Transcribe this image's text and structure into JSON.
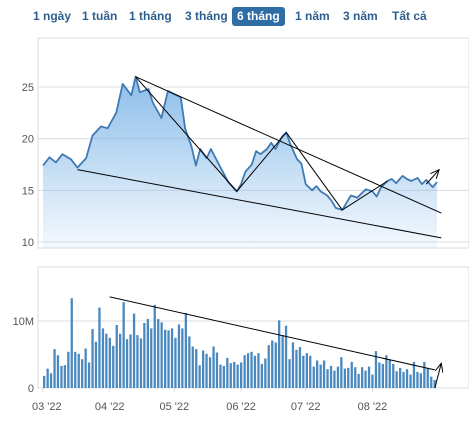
{
  "tabs": [
    {
      "label": "1 ngày",
      "active": false
    },
    {
      "label": "1 tuần",
      "active": false
    },
    {
      "label": "1 tháng",
      "active": false
    },
    {
      "label": "3 tháng",
      "active": false
    },
    {
      "label": "6 tháng",
      "active": true
    },
    {
      "label": "1 năm",
      "active": false
    },
    {
      "label": "3 năm",
      "active": false
    },
    {
      "label": "Tất cả",
      "active": false
    }
  ],
  "colors": {
    "accent": "#2f6ea5",
    "price_line": "#3f7ab3",
    "price_fill": "#7fb6e8",
    "volume_bar": "#4a89c0",
    "trend_line": "#000000",
    "grid": "#d8dde3",
    "axis_text": "#555555"
  },
  "chart_data": [
    {
      "type": "area",
      "panel": "price",
      "ylim": [
        10,
        28
      ],
      "y_ticks": [
        10,
        15,
        20,
        25
      ],
      "x_range": [
        "2022-03-01",
        "2022-08-31"
      ],
      "series": [
        {
          "points": [
            [
              "2022-03-01",
              17.4
            ],
            [
              "2022-03-04",
              18.2
            ],
            [
              "2022-03-07",
              17.7
            ],
            [
              "2022-03-10",
              18.5
            ],
            [
              "2022-03-14",
              18.0
            ],
            [
              "2022-03-17",
              17.2
            ],
            [
              "2022-03-21",
              18.1
            ],
            [
              "2022-03-24",
              20.3
            ],
            [
              "2022-03-28",
              21.2
            ],
            [
              "2022-03-31",
              21.0
            ],
            [
              "2022-04-04",
              22.5
            ],
            [
              "2022-04-07",
              25.3
            ],
            [
              "2022-04-11",
              24.2
            ],
            [
              "2022-04-13",
              26.0
            ],
            [
              "2022-04-15",
              24.5
            ],
            [
              "2022-04-19",
              24.8
            ],
            [
              "2022-04-21",
              23.5
            ],
            [
              "2022-04-25",
              22.0
            ],
            [
              "2022-04-28",
              24.6
            ],
            [
              "2022-05-04",
              24.0
            ],
            [
              "2022-05-06",
              21.0
            ],
            [
              "2022-05-09",
              19.2
            ],
            [
              "2022-05-11",
              17.4
            ],
            [
              "2022-05-13",
              19.0
            ],
            [
              "2022-05-16",
              18.1
            ],
            [
              "2022-05-18",
              19.0
            ],
            [
              "2022-05-20",
              18.2
            ],
            [
              "2022-05-23",
              17.0
            ],
            [
              "2022-05-26",
              15.8
            ],
            [
              "2022-05-30",
              14.9
            ],
            [
              "2022-06-01",
              15.6
            ],
            [
              "2022-06-03",
              16.8
            ],
            [
              "2022-06-06",
              17.5
            ],
            [
              "2022-06-08",
              18.8
            ],
            [
              "2022-06-10",
              18.5
            ],
            [
              "2022-06-13",
              19.0
            ],
            [
              "2022-06-15",
              19.6
            ],
            [
              "2022-06-17",
              19.0
            ],
            [
              "2022-06-20",
              20.2
            ],
            [
              "2022-06-22",
              20.6
            ],
            [
              "2022-06-24",
              19.4
            ],
            [
              "2022-06-27",
              18.0
            ],
            [
              "2022-06-29",
              17.6
            ],
            [
              "2022-07-01",
              15.6
            ],
            [
              "2022-07-04",
              15.0
            ],
            [
              "2022-07-06",
              15.4
            ],
            [
              "2022-07-08",
              14.9
            ],
            [
              "2022-07-11",
              14.5
            ],
            [
              "2022-07-13",
              14.0
            ],
            [
              "2022-07-15",
              13.3
            ],
            [
              "2022-07-18",
              13.1
            ],
            [
              "2022-07-20",
              13.8
            ],
            [
              "2022-07-22",
              14.5
            ],
            [
              "2022-07-25",
              14.3
            ],
            [
              "2022-07-27",
              14.7
            ],
            [
              "2022-07-29",
              15.1
            ],
            [
              "2022-08-01",
              14.9
            ],
            [
              "2022-08-03",
              14.4
            ],
            [
              "2022-08-05",
              15.3
            ],
            [
              "2022-08-08",
              15.9
            ],
            [
              "2022-08-10",
              16.1
            ],
            [
              "2022-08-12",
              15.7
            ],
            [
              "2022-08-15",
              16.4
            ],
            [
              "2022-08-17",
              16.1
            ],
            [
              "2022-08-19",
              15.9
            ],
            [
              "2022-08-22",
              16.2
            ],
            [
              "2022-08-24",
              15.6
            ],
            [
              "2022-08-26",
              16.0
            ],
            [
              "2022-08-29",
              15.3
            ],
            [
              "2022-08-31",
              15.8
            ]
          ]
        }
      ],
      "annotations": [
        {
          "kind": "line",
          "from": [
            "2022-04-13",
            26.0
          ],
          "to": [
            "2022-09-02",
            12.8
          ]
        },
        {
          "kind": "line",
          "from": [
            "2022-03-17",
            17.0
          ],
          "to": [
            "2022-09-02",
            10.4
          ]
        },
        {
          "kind": "line",
          "from": [
            "2022-04-13",
            26.0
          ],
          "to": [
            "2022-05-30",
            14.9
          ]
        },
        {
          "kind": "line",
          "from": [
            "2022-05-30",
            14.9
          ],
          "to": [
            "2022-06-22",
            20.6
          ]
        },
        {
          "kind": "line",
          "from": [
            "2022-06-22",
            20.6
          ],
          "to": [
            "2022-07-18",
            13.1
          ]
        },
        {
          "kind": "line",
          "from": [
            "2022-07-18",
            13.1
          ],
          "to": [
            "2022-08-08",
            15.9
          ]
        },
        {
          "kind": "arrow",
          "from": [
            "2022-08-26",
            15.6
          ],
          "to": [
            "2022-09-01",
            17.0
          ]
        }
      ]
    },
    {
      "type": "bar",
      "panel": "volume",
      "ylim": [
        0,
        16000000
      ],
      "y_ticks": [
        {
          "value": 0,
          "label": "0"
        },
        {
          "value": 10000000,
          "label": "10M"
        }
      ],
      "x_ticks": [
        {
          "date": "2022-03-01",
          "label": "03 '22"
        },
        {
          "date": "2022-04-01",
          "label": "04 '22"
        },
        {
          "date": "2022-05-01",
          "label": "05 '22"
        },
        {
          "date": "2022-06-01",
          "label": "06 '22"
        },
        {
          "date": "2022-07-01",
          "label": "07 '22"
        },
        {
          "date": "2022-08-01",
          "label": "08 '22"
        }
      ],
      "x_range": [
        "2022-03-01",
        "2022-08-31"
      ],
      "values": [
        1800000,
        2900000,
        2200000,
        5800000,
        4900000,
        3300000,
        3400000,
        5400000,
        13400000,
        5400000,
        5100000,
        4300000,
        5900000,
        3800000,
        8800000,
        6900000,
        12000000,
        8900000,
        8100000,
        7500000,
        6300000,
        9400000,
        8100000,
        12800000,
        7300000,
        8000000,
        11100000,
        7900000,
        7400000,
        9700000,
        10300000,
        8900000,
        12400000,
        10300000,
        9800000,
        8700000,
        8600000,
        8900000,
        7500000,
        9500000,
        8900000,
        11200000,
        7700000,
        6200000,
        5800000,
        3400000,
        5600000,
        5100000,
        4600000,
        6200000,
        5300000,
        3500000,
        3300000,
        4500000,
        3700000,
        3900000,
        3500000,
        3800000,
        4900000,
        5200000,
        5400000,
        4800000,
        5200000,
        3600000,
        4400000,
        6400000,
        7100000,
        6800000,
        10100000,
        7900000,
        9300000,
        4300000,
        6800000,
        5700000,
        6100000,
        4800000,
        5200000,
        4800000,
        3200000,
        4100000,
        3500000,
        4100000,
        2800000,
        3300000,
        2600000,
        3200000,
        4600000,
        2900000,
        3000000,
        3900000,
        3100000,
        2100000,
        3100000,
        2600000,
        3200000,
        2000000,
        5500000,
        3800000,
        3600000,
        4900000,
        4200000,
        3600000,
        2500000,
        3000000,
        2400000,
        2800000,
        2000000,
        3900000,
        2400000,
        2200000,
        3900000,
        3000000,
        1700000,
        1200000
      ],
      "annotations": [
        {
          "kind": "line",
          "from": [
            "2022-04-01",
            13600000
          ],
          "to": [
            "2022-08-30",
            2700000
          ]
        },
        {
          "kind": "arrow",
          "from": [
            "2022-08-30",
            0
          ],
          "to": [
            "2022-09-02",
            3700000
          ]
        }
      ]
    }
  ]
}
